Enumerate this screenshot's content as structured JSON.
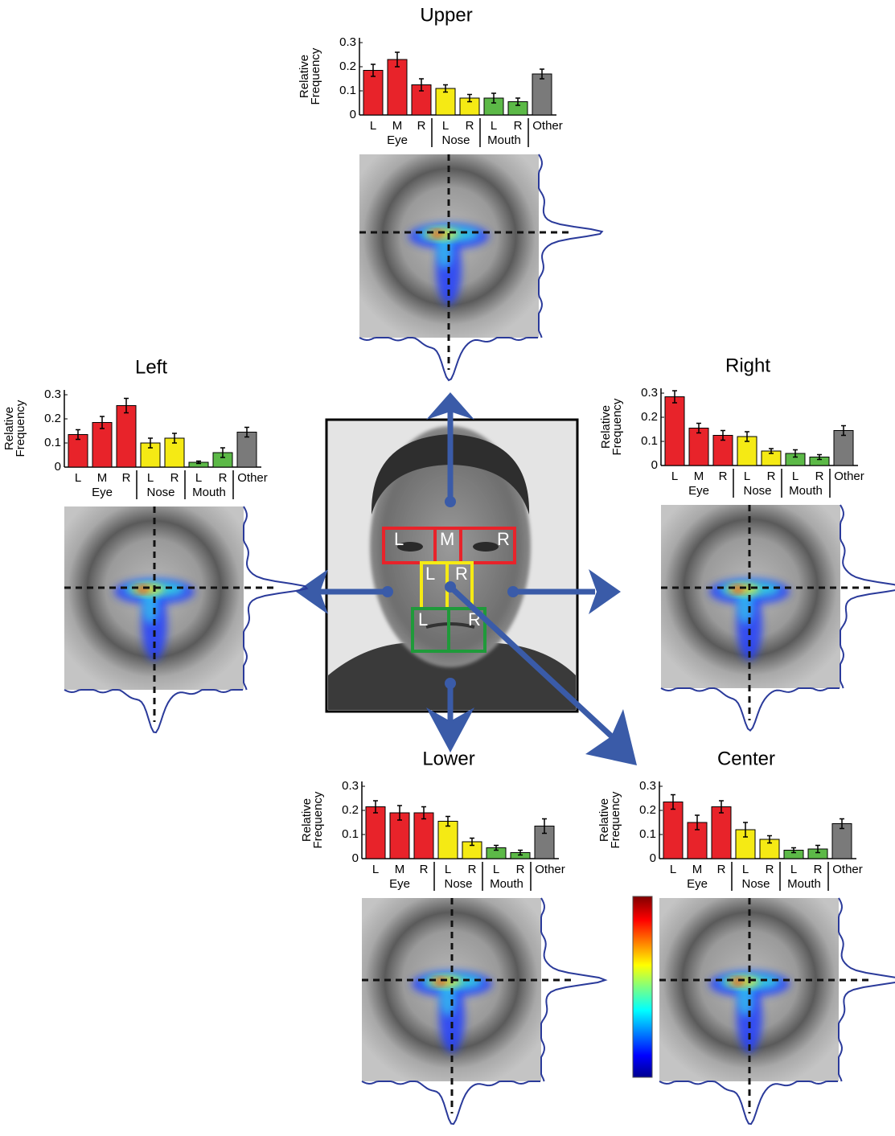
{
  "chart_data": [
    {
      "type": "bar",
      "title": "Upper",
      "ylabel": [
        "Relative",
        "Frequency"
      ],
      "categories": [
        "L",
        "M",
        "R",
        "L",
        "R",
        "L",
        "R",
        "Other"
      ],
      "group_labels": [
        "Eye",
        "Nose",
        "Mouth"
      ],
      "values": [
        0.185,
        0.23,
        0.125,
        0.11,
        0.07,
        0.07,
        0.055,
        0.17
      ],
      "errors": [
        0.025,
        0.03,
        0.025,
        0.015,
        0.015,
        0.02,
        0.015,
        0.02
      ],
      "colors": [
        "#e8232a",
        "#e8232a",
        "#e8232a",
        "#f5ea14",
        "#f5ea14",
        "#5cb947",
        "#5cb947",
        "#7a7a7a"
      ],
      "ylim": [
        0,
        0.32
      ],
      "yticks": [
        0,
        0.1,
        0.2,
        0.3
      ]
    },
    {
      "type": "bar",
      "title": "Left",
      "ylabel": [
        "Relative",
        "Frequency"
      ],
      "categories": [
        "L",
        "M",
        "R",
        "L",
        "R",
        "L",
        "R",
        "Other"
      ],
      "group_labels": [
        "Eye",
        "Nose",
        "Mouth"
      ],
      "values": [
        0.135,
        0.185,
        0.255,
        0.1,
        0.12,
        0.02,
        0.06,
        0.145
      ],
      "errors": [
        0.02,
        0.025,
        0.03,
        0.02,
        0.02,
        0.005,
        0.02,
        0.02
      ],
      "colors": [
        "#e8232a",
        "#e8232a",
        "#e8232a",
        "#f5ea14",
        "#f5ea14",
        "#5cb947",
        "#5cb947",
        "#7a7a7a"
      ],
      "ylim": [
        0,
        0.32
      ],
      "yticks": [
        0,
        0.1,
        0.2,
        0.3
      ]
    },
    {
      "type": "bar",
      "title": "Right",
      "ylabel": [
        "Relative",
        "Frequency"
      ],
      "categories": [
        "L",
        "M",
        "R",
        "L",
        "R",
        "L",
        "R",
        "Other"
      ],
      "group_labels": [
        "Eye",
        "Nose",
        "Mouth"
      ],
      "values": [
        0.285,
        0.155,
        0.125,
        0.12,
        0.06,
        0.05,
        0.035,
        0.145
      ],
      "errors": [
        0.025,
        0.02,
        0.02,
        0.02,
        0.01,
        0.015,
        0.01,
        0.02
      ],
      "colors": [
        "#e8232a",
        "#e8232a",
        "#e8232a",
        "#f5ea14",
        "#f5ea14",
        "#5cb947",
        "#5cb947",
        "#7a7a7a"
      ],
      "ylim": [
        0,
        0.32
      ],
      "yticks": [
        0,
        0.1,
        0.2,
        0.3
      ]
    },
    {
      "type": "bar",
      "title": "Lower",
      "ylabel": [
        "Relative",
        "Frequency"
      ],
      "categories": [
        "L",
        "M",
        "R",
        "L",
        "R",
        "L",
        "R",
        "Other"
      ],
      "group_labels": [
        "Eye",
        "Nose",
        "Mouth"
      ],
      "values": [
        0.215,
        0.19,
        0.19,
        0.155,
        0.07,
        0.045,
        0.025,
        0.135
      ],
      "errors": [
        0.025,
        0.03,
        0.025,
        0.02,
        0.015,
        0.01,
        0.01,
        0.03
      ],
      "colors": [
        "#e8232a",
        "#e8232a",
        "#e8232a",
        "#f5ea14",
        "#f5ea14",
        "#5cb947",
        "#5cb947",
        "#7a7a7a"
      ],
      "ylim": [
        0,
        0.32
      ],
      "yticks": [
        0,
        0.1,
        0.2,
        0.3
      ]
    },
    {
      "type": "bar",
      "title": "Center",
      "ylabel": [
        "Relative",
        "Frequency"
      ],
      "categories": [
        "L",
        "M",
        "R",
        "L",
        "R",
        "L",
        "R",
        "Other"
      ],
      "group_labels": [
        "Eye",
        "Nose",
        "Mouth"
      ],
      "values": [
        0.235,
        0.15,
        0.215,
        0.12,
        0.08,
        0.035,
        0.04,
        0.145
      ],
      "errors": [
        0.03,
        0.03,
        0.025,
        0.03,
        0.015,
        0.01,
        0.015,
        0.02
      ],
      "colors": [
        "#e8232a",
        "#e8232a",
        "#e8232a",
        "#f5ea14",
        "#f5ea14",
        "#5cb947",
        "#5cb947",
        "#7a7a7a"
      ],
      "ylim": [
        0,
        0.32
      ],
      "yticks": [
        0,
        0.1,
        0.2,
        0.3
      ]
    }
  ],
  "center_image": {
    "region_labels": [
      "L",
      "M",
      "R",
      "L",
      "R",
      "L",
      "R"
    ]
  }
}
